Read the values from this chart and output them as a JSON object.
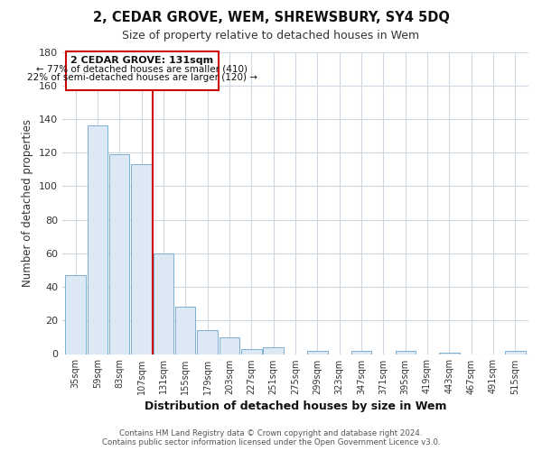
{
  "title": "2, CEDAR GROVE, WEM, SHREWSBURY, SY4 5DQ",
  "subtitle": "Size of property relative to detached houses in Wem",
  "xlabel": "Distribution of detached houses by size in Wem",
  "ylabel": "Number of detached properties",
  "bar_labels": [
    "35sqm",
    "59sqm",
    "83sqm",
    "107sqm",
    "131sqm",
    "155sqm",
    "179sqm",
    "203sqm",
    "227sqm",
    "251sqm",
    "275sqm",
    "299sqm",
    "323sqm",
    "347sqm",
    "371sqm",
    "395sqm",
    "419sqm",
    "443sqm",
    "467sqm",
    "491sqm",
    "515sqm"
  ],
  "bar_heights": [
    47,
    136,
    119,
    113,
    60,
    28,
    14,
    10,
    3,
    4,
    0,
    2,
    0,
    2,
    0,
    2,
    0,
    1,
    0,
    0,
    2
  ],
  "bar_color": "#dce9f5",
  "bar_edge_color": "#7bafd4",
  "vline_color": "#cc0000",
  "ylim": [
    0,
    180
  ],
  "yticks": [
    0,
    20,
    40,
    60,
    80,
    100,
    120,
    140,
    160,
    180
  ],
  "annotation_title": "2 CEDAR GROVE: 131sqm",
  "annotation_line1": "← 77% of detached houses are smaller (410)",
  "annotation_line2": "22% of semi-detached houses are larger (120) →",
  "footer_line1": "Contains HM Land Registry data © Crown copyright and database right 2024.",
  "footer_line2": "Contains public sector information licensed under the Open Government Licence v3.0.",
  "background_color": "#ffffff",
  "grid_color": "#cdd8e3"
}
